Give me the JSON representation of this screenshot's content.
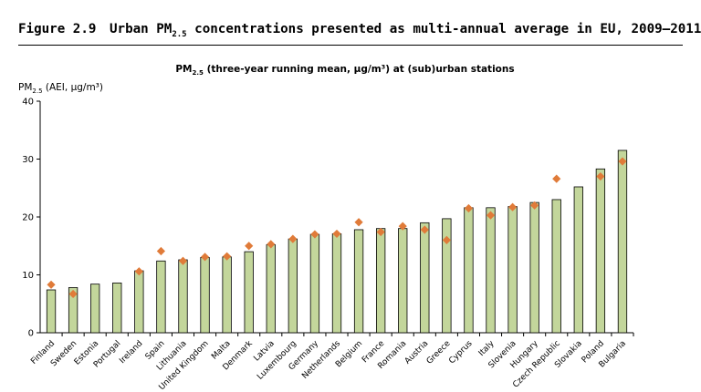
{
  "header": {
    "figure_number": "Figure 2.9",
    "title_pre": "Urban PM",
    "title_sub": "2.5",
    "title_post": " concentrations presented as multi-annual average in EU, 2009–2011"
  },
  "chart_data": {
    "type": "bar",
    "title_pre": "PM",
    "title_sub": "2.5",
    "title_post": " (three-year running mean, µg/m³) at (sub)urban stations",
    "ylabel_pre": "PM",
    "ylabel_sub": "2.5",
    "ylabel_post": " (AEI, µg/m³)",
    "xlabel": "",
    "ylim": [
      0,
      40
    ],
    "yticks": [
      0,
      10,
      20,
      30,
      40
    ],
    "grid": false,
    "legend": "none",
    "colors": {
      "bar_fill": "#c3d69b",
      "bar_stroke": "#000000",
      "marker": "#e07b39"
    },
    "categories": [
      "Finland",
      "Sweden",
      "Estonia",
      "Portugal",
      "Ireland",
      "Spain",
      "Lithuania",
      "United Kingdom",
      "Malta",
      "Denmark",
      "Latvia",
      "Luxembourg",
      "Germany",
      "Netherlands",
      "Belgium",
      "France",
      "Romania",
      "Austria",
      "Greece",
      "Cyprus",
      "Italy",
      "Slovenia",
      "Hungary",
      "Czech Republic",
      "Slovakia",
      "Poland",
      "Bulgaria"
    ],
    "series": [
      {
        "kind": "bar",
        "values": [
          7.4,
          7.8,
          8.4,
          8.6,
          10.7,
          12.4,
          12.6,
          13.0,
          13.1,
          14.0,
          15.2,
          16.2,
          17.0,
          17.1,
          17.8,
          18.0,
          18.0,
          19.0,
          19.7,
          21.6,
          21.6,
          21.8,
          22.5,
          23.0,
          25.2,
          28.3,
          31.5
        ]
      },
      {
        "kind": "marker",
        "values": [
          8.3,
          6.7,
          null,
          null,
          10.6,
          14.1,
          12.4,
          13.1,
          13.2,
          15.0,
          15.3,
          16.2,
          17.0,
          17.1,
          19.1,
          17.4,
          18.4,
          17.8,
          16.0,
          21.5,
          20.3,
          21.7,
          22.0,
          26.6,
          null,
          27.0,
          29.6
        ]
      }
    ]
  }
}
